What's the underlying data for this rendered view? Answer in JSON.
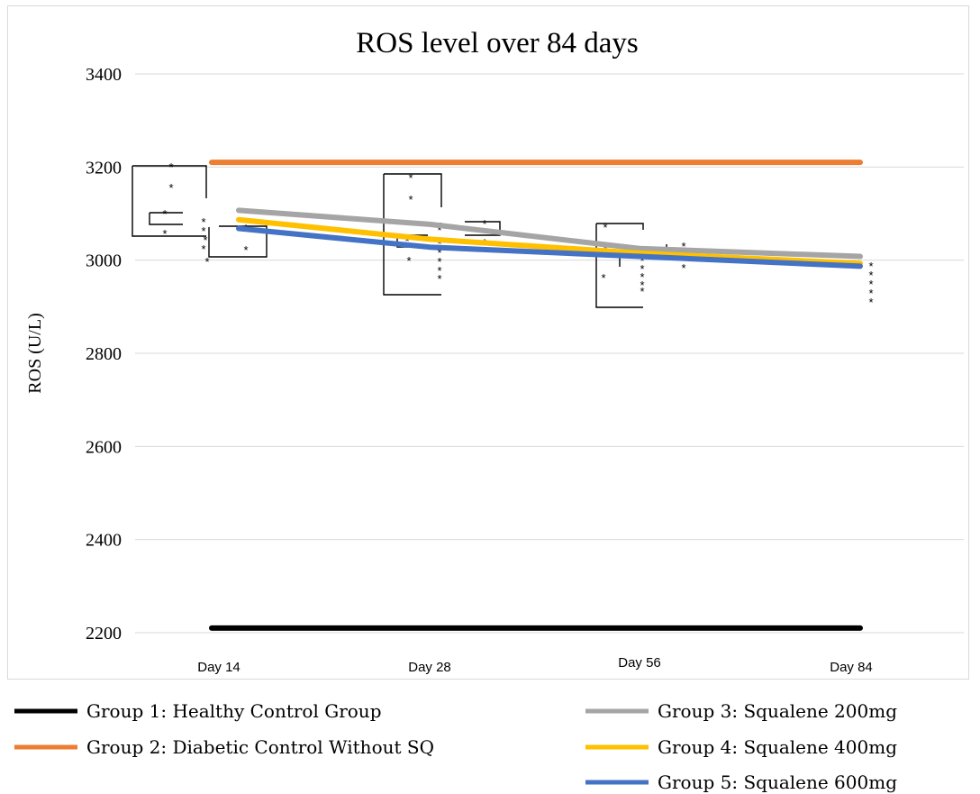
{
  "chart_data": {
    "type": "line",
    "title": "ROS level over 84 days",
    "ylabel": "ROS (U/L)",
    "xlabel": "",
    "categories": [
      "Day 14",
      "Day 28",
      "Day 56",
      "Day 84"
    ],
    "ylim": [
      2200,
      3400
    ],
    "yticks": [
      "2200",
      "2400",
      "2600",
      "2800",
      "3000",
      "3200",
      "3400"
    ],
    "grid": true,
    "legend_position": "bottom",
    "series": [
      {
        "name": "Group 1: Healthy Control Group",
        "color": "#000000",
        "values": [
          2210,
          2210,
          2210,
          2210
        ]
      },
      {
        "name": "Group 2: Diabetic Control Without SQ",
        "color": "#ED7D31",
        "values": [
          3210,
          3210,
          3210,
          3210
        ]
      },
      {
        "name": "Group 3: Squalene 200mg",
        "color": "#A5A5A5",
        "values": [
          3107,
          3077,
          3025,
          3008
        ]
      },
      {
        "name": "Group 4: Squalene 400mg",
        "color": "#FFC000",
        "values": [
          3087,
          3045,
          3015,
          2993
        ]
      },
      {
        "name": "Group 5: Squalene 600mg",
        "color": "#4472C4",
        "values": [
          3068,
          3028,
          3008,
          2987
        ]
      }
    ],
    "annotations": {
      "significance_marker": "*"
    }
  }
}
